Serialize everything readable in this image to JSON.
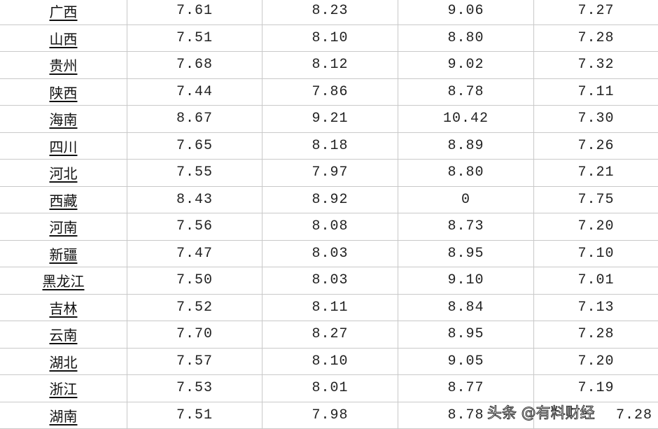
{
  "table": {
    "rows": [
      [
        "广西",
        "7.61",
        "8.23",
        "9.06",
        "7.27"
      ],
      [
        "山西",
        "7.51",
        "8.10",
        "8.80",
        "7.28"
      ],
      [
        "贵州",
        "7.68",
        "8.12",
        "9.02",
        "7.32"
      ],
      [
        "陕西",
        "7.44",
        "7.86",
        "8.78",
        "7.11"
      ],
      [
        "海南",
        "8.67",
        "9.21",
        "10.42",
        "7.30"
      ],
      [
        "四川",
        "7.65",
        "8.18",
        "8.89",
        "7.26"
      ],
      [
        "河北",
        "7.55",
        "7.97",
        "8.80",
        "7.21"
      ],
      [
        "西藏",
        "8.43",
        "8.92",
        "0",
        "7.75"
      ],
      [
        "河南",
        "7.56",
        "8.08",
        "8.73",
        "7.20"
      ],
      [
        "新疆",
        "7.47",
        "8.03",
        "8.95",
        "7.10"
      ],
      [
        "黑龙江",
        "7.50",
        "8.03",
        "9.10",
        "7.01"
      ],
      [
        "吉林",
        "7.52",
        "8.11",
        "8.84",
        "7.13"
      ],
      [
        "云南",
        "7.70",
        "8.27",
        "8.95",
        "7.28"
      ],
      [
        "湖北",
        "7.57",
        "8.10",
        "9.05",
        "7.20"
      ],
      [
        "浙江",
        "7.53",
        "8.01",
        "8.77",
        "7.19"
      ],
      [
        "湖南",
        "7.51",
        "7.98",
        "8.78",
        "7.28"
      ]
    ]
  },
  "watermark": "头条 @有料财经"
}
